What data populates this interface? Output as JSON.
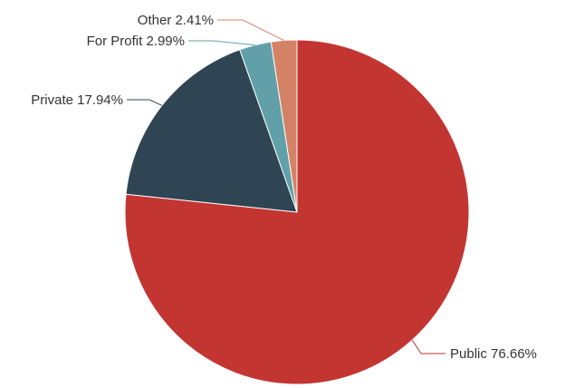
{
  "chart_data": {
    "type": "pie",
    "title": "",
    "legend": "none",
    "slices": [
      {
        "label": "Public",
        "value": 76.66,
        "display": "Public 76.66%",
        "color": "#c23531"
      },
      {
        "label": "Private",
        "value": 17.94,
        "display": "Private 17.94%",
        "color": "#2f4554"
      },
      {
        "label": "For Profit",
        "value": 2.99,
        "display": "For Profit 2.99%",
        "color": "#61a0a8"
      },
      {
        "label": "Other",
        "value": 2.41,
        "display": "Other 2.41%",
        "color": "#d48265"
      }
    ]
  }
}
